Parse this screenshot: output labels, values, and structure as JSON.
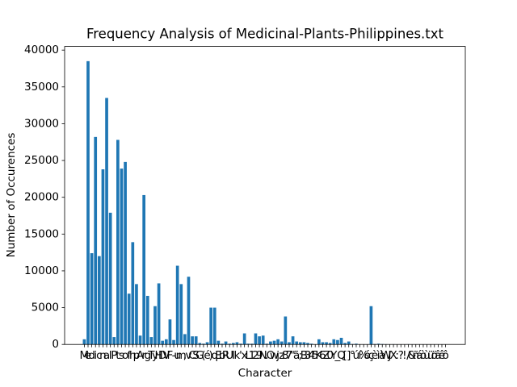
{
  "chart_data": {
    "type": "bar",
    "title": "Frequency Analysis of Medicinal-Plants-Philippines.txt",
    "xlabel": "Character",
    "ylabel": "Number of Occurences",
    "categories": [
      "M",
      "e",
      "d",
      "i",
      "c",
      "n",
      "a",
      "l",
      "P",
      "t",
      "s",
      "o",
      "f",
      "h",
      "p",
      "A",
      "r",
      "g",
      "T",
      "y",
      "H",
      "D",
      "V",
      "F",
      "-",
      "u",
      "m",
      ",",
      "v",
      "C",
      "S",
      "G",
      "(",
      "é",
      ")",
      "q",
      "E",
      "b",
      "R",
      "U",
      "I",
      "k",
      "'",
      "x",
      "L",
      "1",
      "2",
      "9",
      "N",
      ".",
      "O",
      "w",
      "j",
      "z",
      "8",
      "7",
      "\"",
      "ã",
      ";",
      "B",
      "3",
      "4",
      "5",
      "K",
      "6",
      "Z",
      "0",
      "Y",
      "_",
      "Q",
      "[",
      "]",
      "°",
      "ú",
      "í",
      "%",
      "ó",
      "ç",
      "è",
      "ì",
      "à",
      "W",
      "J",
      "X",
      ":",
      "?",
      "!",
      "/",
      "&",
      "ñ",
      "á",
      "ò",
      "ù",
      "ü",
      "ö",
      "â",
      "ê",
      "ô"
    ],
    "values": [
      700,
      38500,
      12400,
      28200,
      12000,
      23800,
      33500,
      17900,
      1000,
      27800,
      23900,
      24800,
      6900,
      13900,
      8200,
      1200,
      20300,
      6600,
      1000,
      5200,
      8300,
      500,
      700,
      3400,
      600,
      10700,
      8200,
      1400,
      9200,
      1100,
      1100,
      200,
      100,
      300,
      5000,
      5000,
      500,
      100,
      400,
      100,
      200,
      300,
      100,
      1500,
      100,
      100,
      1500,
      1100,
      1200,
      100,
      400,
      500,
      700,
      400,
      3800,
      300,
      1100,
      400,
      300,
      300,
      200,
      100,
      0,
      700,
      300,
      300,
      200,
      700,
      600,
      900,
      200,
      400,
      50,
      100,
      0,
      0,
      0,
      5200,
      50,
      100,
      50,
      30,
      20,
      30,
      10,
      20,
      10,
      30,
      20,
      10,
      20,
      10,
      10,
      20,
      10,
      10,
      20,
      10
    ],
    "color": "#1f77b4",
    "ylim": [
      0,
      40500
    ],
    "yticks": [
      0,
      5000,
      10000,
      15000,
      20000,
      25000,
      30000,
      35000,
      40000
    ]
  }
}
